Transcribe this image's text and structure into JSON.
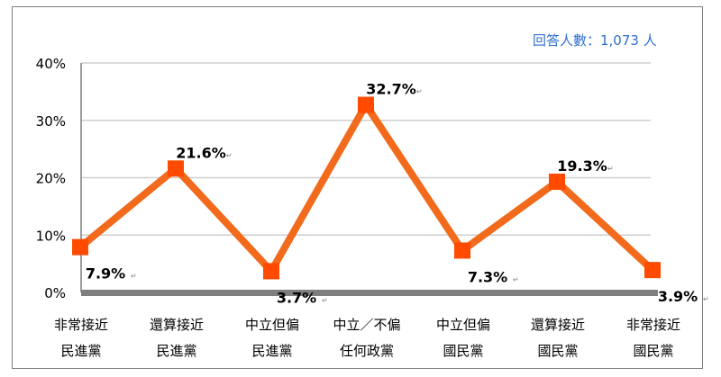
{
  "respondents_note": "回答人數：1,073 人",
  "chart_data": {
    "type": "line",
    "title": "",
    "xlabel": "",
    "ylabel": "",
    "ylim": [
      0,
      40
    ],
    "y_ticks": [
      "0%",
      "10%",
      "20%",
      "30%",
      "40%"
    ],
    "grid": true,
    "legend": "none",
    "categories": [
      [
        "非常接近",
        "民進黨"
      ],
      [
        "還算接近",
        "民進黨"
      ],
      [
        "中立但偏",
        "民進黨"
      ],
      [
        "中立／不偏",
        "任何政黨"
      ],
      [
        "中立但偏",
        "國民黨"
      ],
      [
        "還算接近",
        "國民黨"
      ],
      [
        "非常接近",
        "國民黨"
      ]
    ],
    "series": [
      {
        "values": [
          7.9,
          21.6,
          3.7,
          32.7,
          7.3,
          19.3,
          3.9
        ],
        "labels": [
          "7.9%",
          "21.6%",
          "3.7%",
          "32.7%",
          "7.3%",
          "19.3%",
          "3.9%"
        ]
      }
    ],
    "colors": {
      "line": "#f26b1d",
      "marker": "#ff4a00",
      "grid": "#cfcfcf",
      "axis": "#7f7f7f"
    }
  }
}
